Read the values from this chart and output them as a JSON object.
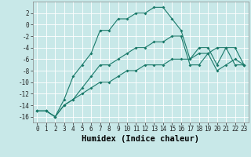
{
  "xlabel": "Humidex (Indice chaleur)",
  "x_values": [
    0,
    1,
    2,
    3,
    4,
    5,
    6,
    7,
    8,
    9,
    10,
    11,
    12,
    13,
    14,
    15,
    16,
    17,
    18,
    19,
    20,
    21,
    22,
    23
  ],
  "line1_y": [
    -15,
    -15,
    -16,
    -13,
    -9,
    -7,
    -5,
    -1,
    -1,
    1,
    1,
    2,
    2,
    3,
    3,
    1,
    -1,
    -6,
    -4,
    -4,
    -7,
    -4,
    -7,
    -7
  ],
  "line2_y": [
    -15,
    -15,
    -16,
    -14,
    -13,
    -11,
    -9,
    -7,
    -7,
    -6,
    -5,
    -4,
    -4,
    -3,
    -3,
    -2,
    -2,
    -7,
    -7,
    -5,
    -8,
    -7,
    -6,
    -7
  ],
  "line3_y": [
    -15,
    -15,
    -16,
    -14,
    -13,
    -12,
    -11,
    -10,
    -10,
    -9,
    -8,
    -8,
    -7,
    -7,
    -7,
    -6,
    -6,
    -6,
    -5,
    -5,
    -4,
    -4,
    -4,
    -7
  ],
  "bg_color": "#c8e8e8",
  "grid_color": "#ffffff",
  "line_color": "#1a7a6a",
  "marker": "D",
  "marker_size": 2,
  "ylim": [
    -17,
    4
  ],
  "xlim": [
    -0.5,
    23.5
  ],
  "yticks": [
    2,
    0,
    -2,
    -4,
    -6,
    -8,
    -10,
    -12,
    -14,
    -16
  ],
  "xticks": [
    0,
    1,
    2,
    3,
    4,
    5,
    6,
    7,
    8,
    9,
    10,
    11,
    12,
    13,
    14,
    15,
    16,
    17,
    18,
    19,
    20,
    21,
    22,
    23
  ],
  "tick_fontsize": 5.5,
  "xlabel_fontsize": 7.5,
  "linewidth": 0.8
}
